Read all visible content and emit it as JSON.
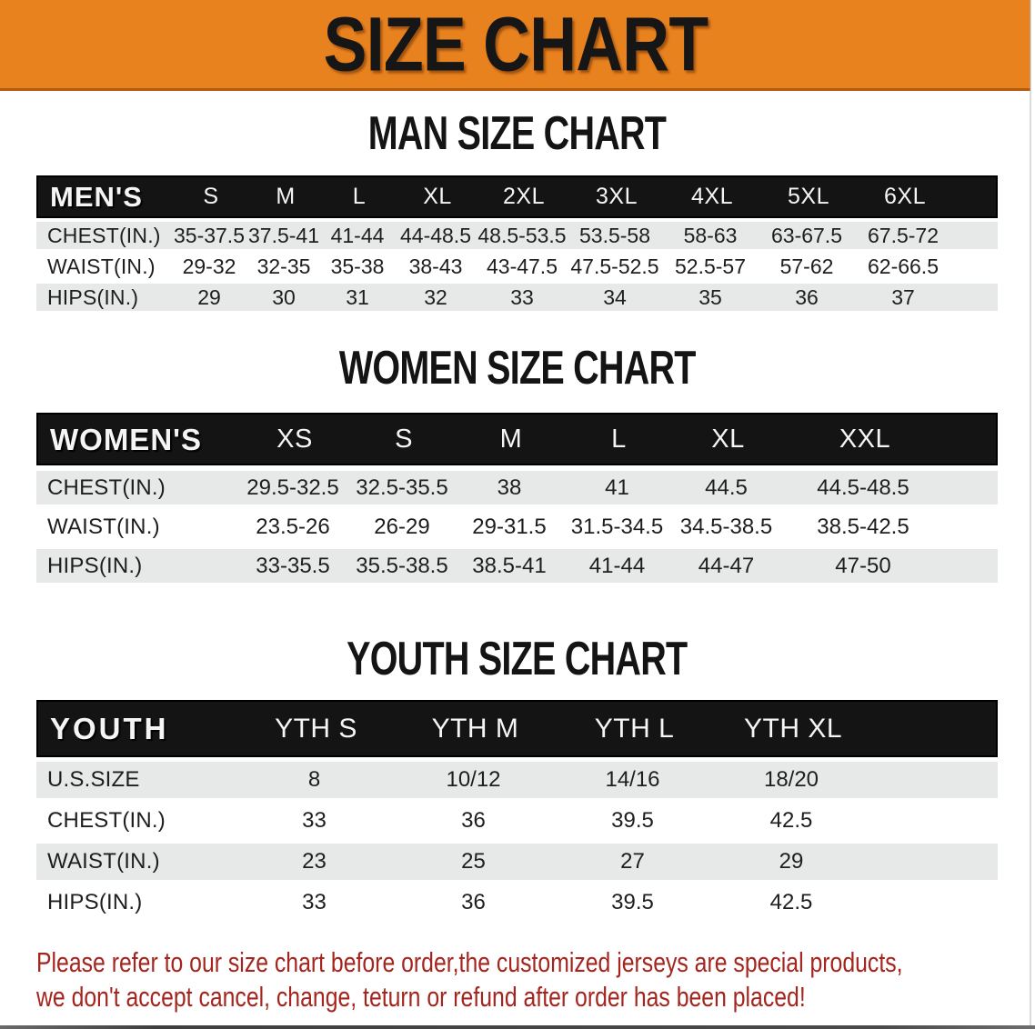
{
  "banner": {
    "title": "SIZE CHART",
    "bg_color": "#E8821E",
    "border_color": "#B45C0E"
  },
  "sections": [
    {
      "heading": "MAN SIZE CHART",
      "table": {
        "group_label": "MEN'S",
        "columns": [
          "S",
          "M",
          "L",
          "XL",
          "2XL",
          "3XL",
          "4XL",
          "5XL",
          "6XL"
        ],
        "rows": [
          {
            "label": "CHEST(IN.)",
            "values": [
              "35-37.5",
              "37.5-41",
              "41-44",
              "44-48.5",
              "48.5-53.5",
              "53.5-58",
              "58-63",
              "63-67.5",
              "67.5-72"
            ]
          },
          {
            "label": "WAIST(IN.)",
            "values": [
              "29-32",
              "32-35",
              "35-38",
              "38-43",
              "43-47.5",
              "47.5-52.5",
              "52.5-57",
              "57-62",
              "62-66.5"
            ]
          },
          {
            "label": "HIPS(IN.)",
            "values": [
              "29",
              "30",
              "31",
              "32",
              "33",
              "34",
              "35",
              "36",
              "37"
            ]
          }
        ]
      }
    },
    {
      "heading": "WOMEN SIZE CHART",
      "table": {
        "group_label": "WOMEN'S",
        "columns": [
          "XS",
          "S",
          "M",
          "L",
          "XL",
          "XXL"
        ],
        "rows": [
          {
            "label": "CHEST(IN.)",
            "values": [
              "29.5-32.5",
              "32.5-35.5",
              "38",
              "41",
              "44.5",
              "44.5-48.5"
            ]
          },
          {
            "label": "WAIST(IN.)",
            "values": [
              "23.5-26",
              "26-29",
              "29-31.5",
              "31.5-34.5",
              "34.5-38.5",
              "38.5-42.5"
            ]
          },
          {
            "label": "HIPS(IN.)",
            "values": [
              "33-35.5",
              "35.5-38.5",
              "38.5-41",
              "41-44",
              "44-47",
              "47-50"
            ]
          }
        ]
      }
    },
    {
      "heading": "YOUTH SIZE CHART",
      "table": {
        "group_label": "YOUTH",
        "columns": [
          "YTH S",
          "YTH M",
          "YTH L",
          "YTH XL"
        ],
        "rows": [
          {
            "label": "U.S.SIZE",
            "values": [
              "8",
              "10/12",
              "14/16",
              "18/20"
            ]
          },
          {
            "label": "CHEST(IN.)",
            "values": [
              "33",
              "36",
              "39.5",
              "42.5"
            ]
          },
          {
            "label": "WAIST(IN.)",
            "values": [
              "23",
              "25",
              "27",
              "29"
            ]
          },
          {
            "label": "HIPS(IN.)",
            "values": [
              "33",
              "36",
              "39.5",
              "42.5"
            ]
          }
        ]
      }
    }
  ],
  "footer_note": {
    "line1": "Please refer to our size chart before order,the customized jerseys are special products,",
    "line2": "we don't accept cancel, change, teturn or refund after order has been placed!",
    "color": "#A5251E"
  },
  "colors": {
    "header_row_bg": "#141414",
    "shaded_row_bg": "#e7e9e9",
    "table_text": "#1e1e1e"
  }
}
